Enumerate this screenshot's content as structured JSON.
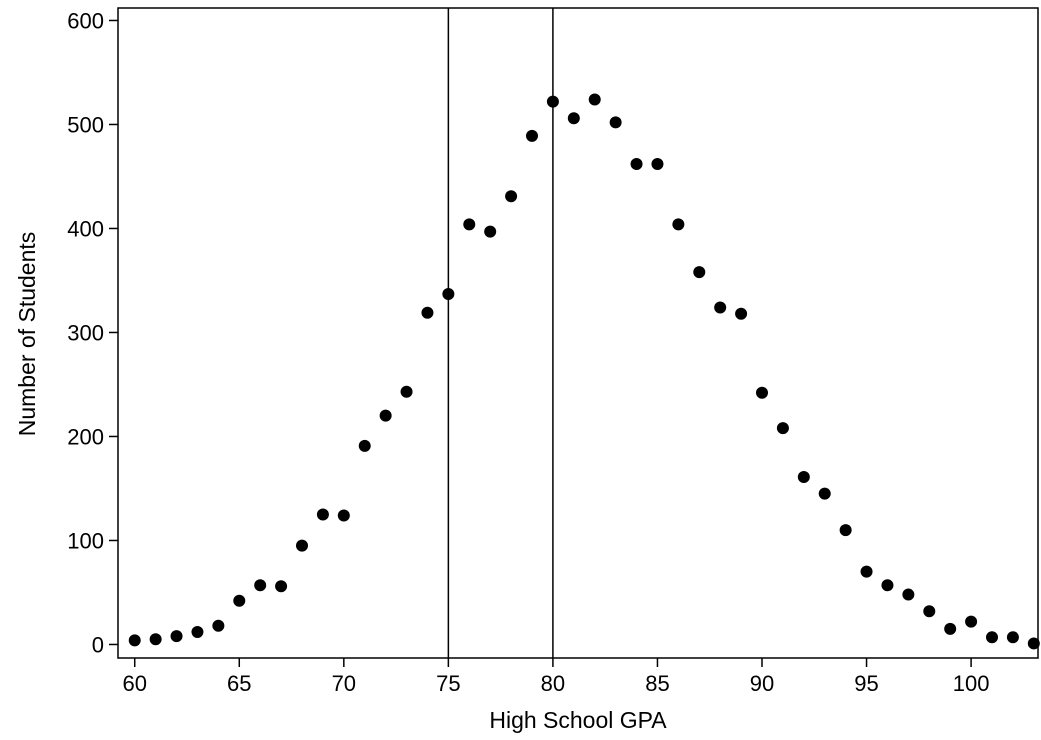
{
  "chart_data": {
    "type": "scatter",
    "title": "",
    "xlabel": "High School GPA",
    "ylabel": "Number of Students",
    "xlim": [
      59.2,
      103.2
    ],
    "ylim": [
      -13,
      612
    ],
    "grid": false,
    "legend": "none",
    "x_ticks": [
      "60",
      "65",
      "70",
      "75",
      "80",
      "85",
      "90",
      "95",
      "100"
    ],
    "y_ticks": [
      "0",
      "100",
      "200",
      "300",
      "400",
      "500",
      "600"
    ],
    "vertical_lines": [
      75,
      80
    ],
    "series": [
      {
        "x": [
          60,
          61,
          62,
          63,
          64,
          65,
          66,
          67,
          68,
          69,
          70,
          71,
          72,
          73,
          74,
          75,
          76,
          77,
          78,
          79,
          80,
          81,
          82,
          83,
          84,
          85,
          86,
          87,
          88,
          89,
          90,
          91,
          92,
          93,
          94,
          95,
          96,
          97,
          98,
          99,
          100,
          101,
          102,
          103
        ],
        "y": [
          4,
          5,
          8,
          12,
          18,
          42,
          57,
          56,
          95,
          125,
          124,
          191,
          220,
          243,
          319,
          337,
          404,
          397,
          431,
          489,
          522,
          506,
          524,
          502,
          462,
          462,
          404,
          358,
          324,
          318,
          242,
          208,
          161,
          145,
          110,
          70,
          57,
          48,
          32,
          15,
          22,
          7,
          7,
          1
        ]
      }
    ],
    "colors": {
      "marker": "#000000",
      "axis": "#000000",
      "background": "#ffffff"
    }
  }
}
